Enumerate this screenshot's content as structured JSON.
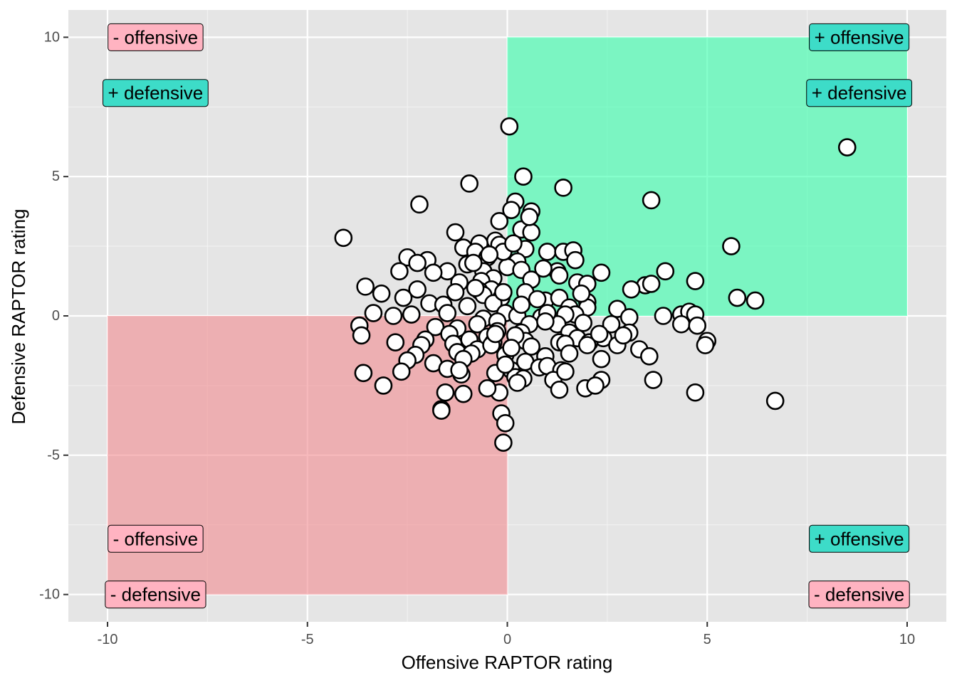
{
  "chart_data": {
    "type": "scatter",
    "xlabel": "Offensive RAPTOR rating",
    "ylabel": "Defensive RAPTOR rating",
    "xlim": [
      -10.98,
      10.98
    ],
    "ylim": [
      -10.98,
      10.98
    ],
    "x_ticks": [
      -10,
      -5,
      0,
      5,
      10
    ],
    "y_ticks": [
      -10,
      -5,
      0,
      5,
      10
    ],
    "x_tick_labels": [
      "-10",
      "-5",
      "0",
      "5",
      "10"
    ],
    "y_tick_labels": [
      "-10",
      "-5",
      "0",
      "5",
      "10"
    ],
    "grid": true,
    "regions": [
      {
        "name": "good",
        "x": [
          0,
          10
        ],
        "y": [
          0,
          10
        ],
        "color": "#33ffaa"
      },
      {
        "name": "bad",
        "x": [
          -10,
          0
        ],
        "y": [
          -10,
          0
        ],
        "color": "#f28b8f"
      }
    ],
    "annotations": [
      {
        "text": "- offensive",
        "x": -8.8,
        "y": 10,
        "fill": "#ffb3c1"
      },
      {
        "text": "+ defensive",
        "x": -8.8,
        "y": 8,
        "fill": "#3ddcc8"
      },
      {
        "text": "+ offensive",
        "x": 8.8,
        "y": 10,
        "fill": "#3ddcc8"
      },
      {
        "text": "+ defensive",
        "x": 8.8,
        "y": 8,
        "fill": "#3ddcc8"
      },
      {
        "text": "- offensive",
        "x": -8.8,
        "y": -8,
        "fill": "#ffb3c1"
      },
      {
        "text": "- defensive",
        "x": -8.8,
        "y": -10,
        "fill": "#ffb3c1"
      },
      {
        "text": "+ offensive",
        "x": 8.8,
        "y": -8,
        "fill": "#3ddcc8"
      },
      {
        "text": "- defensive",
        "x": 8.8,
        "y": -10,
        "fill": "#ffb3c1"
      }
    ],
    "points": [
      [
        0.05,
        6.8
      ],
      [
        8.5,
        6.05
      ],
      [
        -0.95,
        4.75
      ],
      [
        0.4,
        5.0
      ],
      [
        1.4,
        4.6
      ],
      [
        -2.2,
        4.0
      ],
      [
        0.2,
        4.1
      ],
      [
        3.6,
        4.15
      ],
      [
        0.6,
        3.75
      ],
      [
        -4.1,
        2.8
      ],
      [
        -1.3,
        3.0
      ],
      [
        -0.2,
        3.4
      ],
      [
        0.1,
        3.8
      ],
      [
        0.35,
        3.1
      ],
      [
        0.6,
        3.0
      ],
      [
        -0.3,
        2.7
      ],
      [
        -0.7,
        2.6
      ],
      [
        -0.2,
        2.55
      ],
      [
        -1.1,
        2.45
      ],
      [
        5.6,
        2.5
      ],
      [
        0.45,
        2.4
      ],
      [
        1.0,
        2.3
      ],
      [
        1.4,
        2.3
      ],
      [
        1.65,
        2.35
      ],
      [
        -0.8,
        2.3
      ],
      [
        -2.5,
        2.1
      ],
      [
        -2.0,
        2.0
      ],
      [
        -2.25,
        1.9
      ],
      [
        0.25,
        1.95
      ],
      [
        1.7,
        2.0
      ],
      [
        -1.0,
        1.85
      ],
      [
        -0.5,
        2.1
      ],
      [
        0.0,
        1.75
      ],
      [
        0.35,
        1.65
      ],
      [
        -1.5,
        1.6
      ],
      [
        -1.85,
        1.55
      ],
      [
        -2.7,
        1.6
      ],
      [
        -0.6,
        1.6
      ],
      [
        1.25,
        1.6
      ],
      [
        2.35,
        1.55
      ],
      [
        3.95,
        1.6
      ],
      [
        4.7,
        1.25
      ],
      [
        1.3,
        1.45
      ],
      [
        -0.35,
        1.35
      ],
      [
        -1.2,
        1.2
      ],
      [
        -0.65,
        1.25
      ],
      [
        0.6,
        1.3
      ],
      [
        1.75,
        1.2
      ],
      [
        2.0,
        1.15
      ],
      [
        3.45,
        1.1
      ],
      [
        3.6,
        1.15
      ],
      [
        -3.55,
        1.05
      ],
      [
        -0.4,
        0.95
      ],
      [
        -1.3,
        0.85
      ],
      [
        -0.7,
        0.9
      ],
      [
        0.45,
        0.85
      ],
      [
        3.1,
        0.95
      ],
      [
        5.75,
        0.65
      ],
      [
        6.2,
        0.55
      ],
      [
        -2.25,
        0.95
      ],
      [
        -3.15,
        0.8
      ],
      [
        -2.6,
        0.65
      ],
      [
        -0.6,
        0.75
      ],
      [
        -0.15,
        0.65
      ],
      [
        0.95,
        0.55
      ],
      [
        1.3,
        0.65
      ],
      [
        2.0,
        0.5
      ],
      [
        -1.95,
        0.45
      ],
      [
        -1.6,
        0.4
      ],
      [
        -1.0,
        0.35
      ],
      [
        -0.35,
        0.45
      ],
      [
        0.75,
        0.6
      ],
      [
        1.55,
        0.3
      ],
      [
        2.0,
        0.3
      ],
      [
        2.75,
        0.25
      ],
      [
        1.7,
        0.05
      ],
      [
        -3.35,
        0.1
      ],
      [
        -2.85,
        0.0
      ],
      [
        -2.4,
        0.05
      ],
      [
        -0.05,
        0.1
      ],
      [
        0.25,
        0.0
      ],
      [
        0.85,
        -0.05
      ],
      [
        1.45,
        0.05
      ],
      [
        3.05,
        -0.05
      ],
      [
        3.9,
        0.0
      ],
      [
        4.35,
        0.05
      ],
      [
        4.55,
        0.15
      ],
      [
        4.7,
        0.05
      ],
      [
        -0.6,
        -0.1
      ],
      [
        -0.25,
        -0.2
      ],
      [
        0.55,
        -0.3
      ],
      [
        1.25,
        -0.3
      ],
      [
        1.9,
        -0.25
      ],
      [
        2.6,
        -0.3
      ],
      [
        4.35,
        -0.3
      ],
      [
        4.75,
        -0.35
      ],
      [
        -3.7,
        -0.35
      ],
      [
        -1.8,
        -0.4
      ],
      [
        -1.25,
        -0.45
      ],
      [
        -0.75,
        -0.3
      ],
      [
        -0.25,
        -0.55
      ],
      [
        0.35,
        -0.6
      ],
      [
        1.55,
        -0.6
      ],
      [
        2.4,
        -0.8
      ],
      [
        3.05,
        -0.6
      ],
      [
        -3.65,
        -0.7
      ],
      [
        -1.45,
        -0.65
      ],
      [
        -0.95,
        -0.85
      ],
      [
        -0.5,
        -0.75
      ],
      [
        0.45,
        -0.9
      ],
      [
        1.3,
        -0.95
      ],
      [
        1.75,
        -0.8
      ],
      [
        -2.05,
        -0.85
      ],
      [
        -0.35,
        -0.95
      ],
      [
        0.2,
        -0.7
      ],
      [
        2.05,
        -0.95
      ],
      [
        2.75,
        -1.05
      ],
      [
        5.0,
        -0.9
      ],
      [
        -2.8,
        -0.95
      ],
      [
        -2.15,
        -1.05
      ],
      [
        -1.35,
        -1.0
      ],
      [
        -0.75,
        -1.2
      ],
      [
        -0.4,
        -1.05
      ],
      [
        0.6,
        -1.1
      ],
      [
        1.45,
        -1.0
      ],
      [
        2.0,
        -1.05
      ],
      [
        3.3,
        -1.2
      ],
      [
        4.95,
        -1.05
      ],
      [
        -2.3,
        -1.4
      ],
      [
        -1.25,
        -1.3
      ],
      [
        -0.9,
        -1.35
      ],
      [
        -0.05,
        -1.4
      ],
      [
        0.95,
        -1.45
      ],
      [
        1.55,
        -1.35
      ],
      [
        3.55,
        -1.45
      ],
      [
        -2.5,
        -1.6
      ],
      [
        -1.85,
        -1.7
      ],
      [
        -1.1,
        -1.55
      ],
      [
        0.45,
        -1.65
      ],
      [
        0.8,
        -1.85
      ],
      [
        1.0,
        -1.8
      ],
      [
        2.35,
        -1.55
      ],
      [
        -1.5,
        -1.9
      ],
      [
        0.1,
        -1.95
      ],
      [
        1.35,
        -1.95
      ],
      [
        -3.6,
        -2.05
      ],
      [
        -2.65,
        -2.0
      ],
      [
        -1.15,
        -2.1
      ],
      [
        -0.3,
        -2.05
      ],
      [
        0.2,
        -2.2
      ],
      [
        0.4,
        -2.25
      ],
      [
        1.15,
        -2.3
      ],
      [
        1.45,
        -2.0
      ],
      [
        2.35,
        -2.3
      ],
      [
        3.65,
        -2.3
      ],
      [
        -3.1,
        -2.5
      ],
      [
        0.25,
        -2.4
      ],
      [
        1.95,
        -2.6
      ],
      [
        2.2,
        -2.5
      ],
      [
        -1.55,
        -2.75
      ],
      [
        -1.1,
        -2.8
      ],
      [
        -0.2,
        -2.75
      ],
      [
        1.3,
        -2.65
      ],
      [
        4.7,
        -2.75
      ],
      [
        6.7,
        -3.05
      ],
      [
        -1.65,
        -3.35
      ],
      [
        -0.15,
        -3.5
      ],
      [
        -0.05,
        -3.85
      ],
      [
        -0.1,
        -4.55
      ],
      [
        -1.65,
        -3.4
      ],
      [
        -0.5,
        -2.6
      ],
      [
        -0.3,
        -0.65
      ],
      [
        0.35,
        0.4
      ],
      [
        -0.1,
        2.3
      ],
      [
        0.9,
        1.7
      ],
      [
        -1.5,
        0.1
      ],
      [
        2.9,
        -0.7
      ],
      [
        -0.8,
        1.0
      ],
      [
        0.1,
        -1.15
      ],
      [
        1.0,
        0.1
      ],
      [
        -0.05,
        -1.75
      ],
      [
        0.55,
        3.55
      ],
      [
        0.95,
        -0.2
      ],
      [
        1.85,
        0.8
      ],
      [
        -0.45,
        2.2
      ],
      [
        -0.85,
        1.9
      ],
      [
        -1.2,
        -1.95
      ],
      [
        2.3,
        -0.65
      ],
      [
        -0.1,
        0.85
      ],
      [
        0.15,
        2.6
      ]
    ]
  }
}
